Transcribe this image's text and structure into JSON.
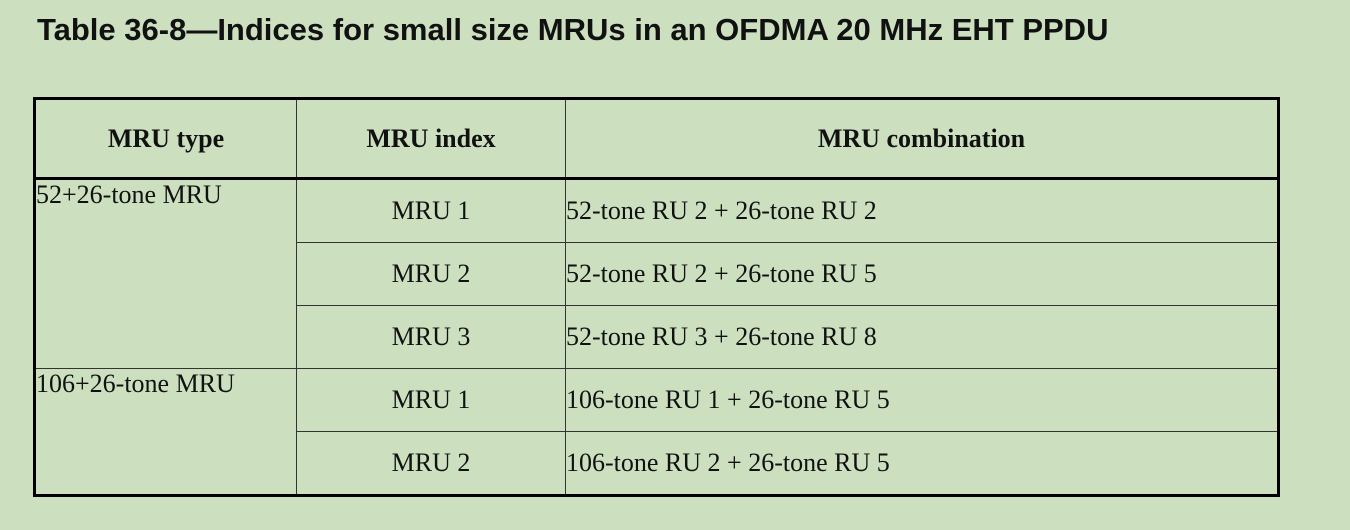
{
  "title": "Table 36-8—Indices for small size MRUs in an OFDMA 20 MHz EHT PPDU",
  "table": {
    "headers": [
      "MRU type",
      "MRU index",
      "MRU combination"
    ],
    "groups": [
      {
        "type": "52+26-tone MRU",
        "rows": [
          {
            "index": "MRU 1",
            "combination": "52-tone RU 2 + 26-tone RU 2"
          },
          {
            "index": "MRU 2",
            "combination": "52-tone RU 2 + 26-tone RU 5"
          },
          {
            "index": "MRU 3",
            "combination": "52-tone RU 3 + 26-tone RU 8"
          }
        ]
      },
      {
        "type": "106+26-tone MRU",
        "rows": [
          {
            "index": "MRU 1",
            "combination": "106-tone RU 1 + 26-tone RU 5"
          },
          {
            "index": "MRU 2",
            "combination": "106-tone RU 2 + 26-tone RU 5"
          }
        ]
      }
    ]
  }
}
